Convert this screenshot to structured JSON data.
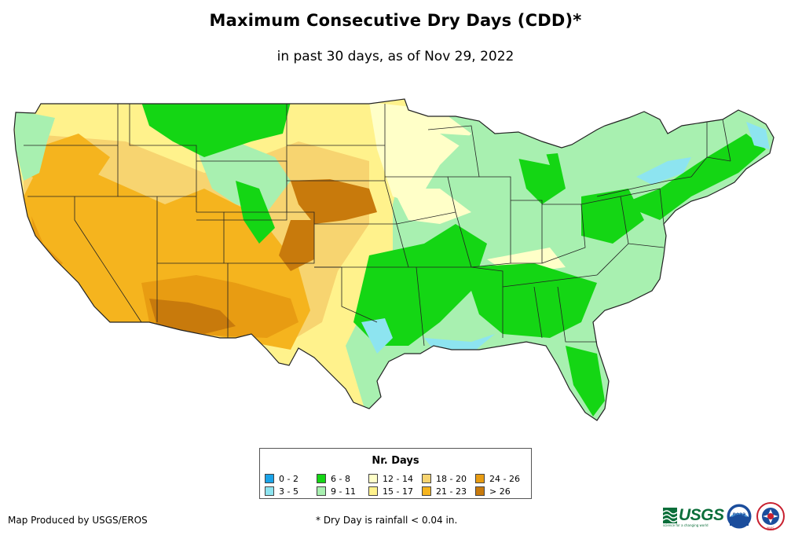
{
  "title": "Maximum Consecutive Dry Days (CDD)*",
  "subtitle": "in past 30 days, as of Nov 29, 2022",
  "legend": {
    "title": "Nr. Days",
    "items": [
      {
        "label": "0 - 2",
        "color": "#1aa3e8"
      },
      {
        "label": "3 - 5",
        "color": "#8de4f0"
      },
      {
        "label": "6 - 8",
        "color": "#14d614"
      },
      {
        "label": "9 - 11",
        "color": "#a8f0b0"
      },
      {
        "label": "12 - 14",
        "color": "#ffffc8"
      },
      {
        "label": "15 - 17",
        "color": "#fff28c"
      },
      {
        "label": "18 - 20",
        "color": "#f7d470"
      },
      {
        "label": "21 - 23",
        "color": "#f5b41e"
      },
      {
        "label": "24 - 26",
        "color": "#e89c12"
      },
      {
        "label": "> 26",
        "color": "#c87a0c"
      }
    ]
  },
  "footer": {
    "credit": "Map Produced by USGS/EROS",
    "note": "* Dry Day is rainfall < 0.04 in."
  },
  "logos": {
    "usgs": "USGS",
    "usgs_tagline": "science for a changing world",
    "noaa": "noaa",
    "nws": "NWS"
  }
}
